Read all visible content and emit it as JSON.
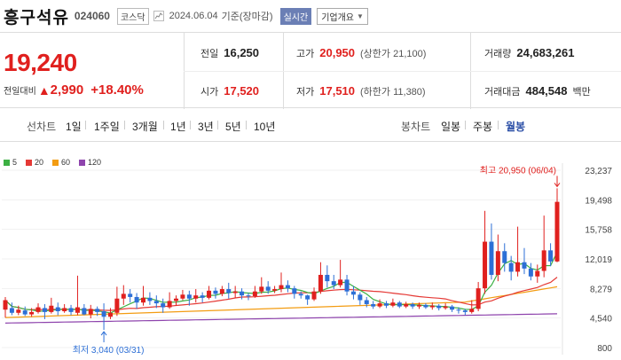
{
  "header": {
    "name": "흥구석유",
    "code": "024060",
    "market": "코스닥",
    "date": "2024.06.04",
    "basis": "기준(장마감)",
    "realtime_label": "실시간",
    "company_info_label": "기업개요"
  },
  "price": {
    "current": "19,240",
    "change_label": "전일대비",
    "change": "2,990",
    "change_pct": "+18.40%",
    "prev_close_label": "전일",
    "prev_close": "16,250",
    "high_label": "고가",
    "high": "20,950",
    "upper_limit": "(상한가 21,100)",
    "volume_label": "거래량",
    "volume": "24,683,261",
    "open_label": "시가",
    "open": "17,520",
    "low_label": "저가",
    "low": "17,510",
    "lower_limit": "(하한가 11,380)",
    "amount_label": "거래대금",
    "amount": "484,548",
    "amount_unit": "백만"
  },
  "tabs": {
    "line_label": "선차트",
    "line_items": [
      "1일",
      "1주일",
      "3개월",
      "1년",
      "3년",
      "5년",
      "10년"
    ],
    "candle_label": "봉차트",
    "candle_items": [
      "일봉",
      "주봉",
      "월봉"
    ],
    "selected_candle": "월봉"
  },
  "colors": {
    "up": "#e0201e",
    "down": "#2d6fd6",
    "ma5": "#3cb043",
    "ma20": "#e53935",
    "ma60": "#f39c12",
    "ma120": "#8e44ad"
  },
  "chart_data": {
    "type": "candlestick",
    "interval": "monthly",
    "legend": [
      {
        "name": "5",
        "color": "#3cb043"
      },
      {
        "name": "20",
        "color": "#e53935"
      },
      {
        "name": "60",
        "color": "#f39c12"
      },
      {
        "name": "120",
        "color": "#8e44ad"
      }
    ],
    "y_ticks": [
      "23,237",
      "19,498",
      "15,758",
      "12,019",
      "8,279",
      "4,540",
      "800"
    ],
    "ylim": [
      800,
      23237
    ],
    "annotations": {
      "max": {
        "label": "최고 20,950 (06/04)",
        "value": 20950
      },
      "min": {
        "label": "최저 3,040 (03/31)",
        "value": 3040
      }
    },
    "candles": [
      [
        5600,
        6800,
        7200,
        4600
      ],
      [
        5800,
        5200,
        6500,
        4900
      ],
      [
        5200,
        5600,
        6100,
        4900
      ],
      [
        5500,
        5000,
        6000,
        4800
      ],
      [
        5000,
        5300,
        5800,
        4700
      ],
      [
        5300,
        5900,
        6400,
        5100
      ],
      [
        5800,
        5300,
        6300,
        4400
      ],
      [
        5300,
        6100,
        7100,
        5100
      ],
      [
        5900,
        5400,
        6500,
        4900
      ],
      [
        5400,
        5800,
        6300,
        5200
      ],
      [
        5800,
        5300,
        6200,
        4900
      ],
      [
        5200,
        5900,
        9900,
        4900
      ],
      [
        5800,
        5000,
        6300,
        4900
      ],
      [
        5000,
        5700,
        6200,
        4500
      ],
      [
        5700,
        5300,
        6000,
        4800
      ],
      [
        5400,
        4700,
        6400,
        3040
      ],
      [
        4700,
        5200,
        5800,
        4400
      ],
      [
        5200,
        7000,
        8500,
        4800
      ],
      [
        7000,
        7600,
        8700,
        6200
      ],
      [
        7600,
        7200,
        8200,
        6500
      ],
      [
        7200,
        6500,
        7700,
        5700
      ],
      [
        6500,
        7100,
        8600,
        6100
      ],
      [
        7100,
        6700,
        7800,
        6200
      ],
      [
        6700,
        6400,
        7400,
        5800
      ],
      [
        6400,
        5900,
        7000,
        5200
      ],
      [
        5900,
        6700,
        7800,
        5700
      ],
      [
        6700,
        7000,
        7400,
        6100
      ],
      [
        7000,
        7500,
        8100,
        6800
      ],
      [
        7500,
        7000,
        8000,
        6100
      ],
      [
        7000,
        7400,
        8200,
        6500
      ],
      [
        7400,
        7100,
        7800,
        6500
      ],
      [
        7100,
        8000,
        8600,
        6900
      ],
      [
        8000,
        7600,
        8400,
        7000
      ],
      [
        7600,
        8200,
        8600,
        7300
      ],
      [
        8200,
        7700,
        9000,
        7000
      ],
      [
        7700,
        7900,
        8600,
        7100
      ],
      [
        7900,
        7400,
        8300,
        6900
      ],
      [
        7400,
        7300,
        7700,
        6800
      ],
      [
        7300,
        7900,
        8600,
        7100
      ],
      [
        7900,
        8500,
        9700,
        7600
      ],
      [
        8500,
        8000,
        9200,
        7600
      ],
      [
        8000,
        8200,
        8600,
        7700
      ],
      [
        8200,
        8700,
        10300,
        7800
      ],
      [
        8700,
        8300,
        9300,
        7800
      ],
      [
        8300,
        7600,
        8600,
        7000
      ],
      [
        7600,
        7400,
        7900,
        7000
      ],
      [
        7400,
        6900,
        7500,
        6200
      ],
      [
        6900,
        7900,
        8400,
        6700
      ],
      [
        7900,
        10000,
        11600,
        7600
      ],
      [
        10000,
        9200,
        11200,
        8400
      ],
      [
        9200,
        8700,
        10000,
        8200
      ],
      [
        8700,
        9400,
        11900,
        8400
      ],
      [
        9400,
        7900,
        10000,
        7400
      ],
      [
        7900,
        7500,
        8600,
        6900
      ],
      [
        7500,
        6800,
        7800,
        6200
      ],
      [
        6800,
        6300,
        7200,
        5900
      ],
      [
        6300,
        6000,
        6700,
        5700
      ],
      [
        6000,
        6400,
        6900,
        5800
      ],
      [
        6400,
        6100,
        6700,
        5800
      ],
      [
        6100,
        6500,
        7000,
        5900
      ],
      [
        6500,
        6000,
        6700,
        5800
      ],
      [
        6000,
        6300,
        6600,
        5800
      ],
      [
        6300,
        6000,
        6500,
        5700
      ],
      [
        6000,
        6200,
        6500,
        5700
      ],
      [
        6200,
        5900,
        6400,
        5700
      ],
      [
        5900,
        6100,
        6500,
        5600
      ],
      [
        6100,
        5800,
        6300,
        5500
      ],
      [
        5800,
        6000,
        6400,
        5600
      ],
      [
        6000,
        5600,
        6200,
        5300
      ],
      [
        5600,
        5500,
        5900,
        5100
      ],
      [
        5500,
        5300,
        5700,
        4900
      ],
      [
        5300,
        5700,
        6800,
        5100
      ],
      [
        5700,
        8300,
        9100,
        5400
      ],
      [
        8300,
        14200,
        18100,
        7600
      ],
      [
        14200,
        10000,
        16500,
        9400
      ],
      [
        10000,
        13000,
        15100,
        9200
      ],
      [
        13000,
        11500,
        14000,
        10400
      ],
      [
        11500,
        10400,
        12400,
        9300
      ],
      [
        10400,
        11600,
        16100,
        9800
      ],
      [
        11600,
        10800,
        13400,
        10100
      ],
      [
        10800,
        9800,
        11500,
        9300
      ],
      [
        9800,
        10500,
        11300,
        9000
      ],
      [
        10500,
        13100,
        17500,
        9700
      ],
      [
        13100,
        11700,
        14000,
        11100
      ],
      [
        11700,
        19240,
        20950,
        11600
      ]
    ]
  }
}
